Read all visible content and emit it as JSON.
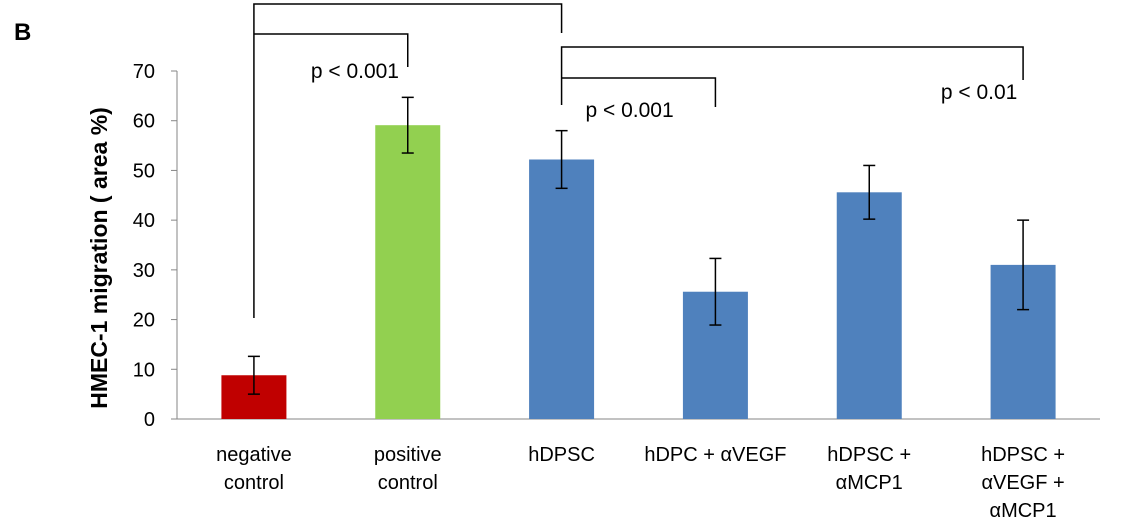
{
  "panel_label": "B",
  "chart_data": {
    "type": "bar",
    "ylabel": "HMEC-1 migration ( area %)",
    "ylim": [
      0,
      70
    ],
    "yticks": [
      0,
      10,
      20,
      30,
      40,
      50,
      60,
      70
    ],
    "grid": false,
    "categories": [
      [
        "negative",
        "control"
      ],
      [
        "positive",
        "control"
      ],
      [
        "hDPSC"
      ],
      [
        "hDPC + αVEGF"
      ],
      [
        "hDPSC +",
        "αMCP1"
      ],
      [
        "hDPSC +",
        "αVEGF +",
        "αMCP1"
      ]
    ],
    "values": [
      8.8,
      59.1,
      52.2,
      25.6,
      45.6,
      31.0
    ],
    "errors": [
      3.8,
      5.6,
      5.8,
      6.7,
      5.4,
      9.0
    ],
    "colors": [
      "#c00000",
      "#92d050",
      "#4f81bd",
      "#4f81bd",
      "#4f81bd",
      "#4f81bd"
    ],
    "significance": [
      {
        "label": "p < 0.001"
      },
      {
        "label": "p < 0.001"
      },
      {
        "label": "p < 0.01"
      }
    ]
  }
}
